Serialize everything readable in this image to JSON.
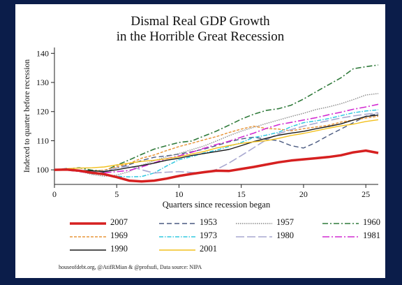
{
  "chart_data": {
    "type": "line",
    "title": "Dismal Real GDP Growth",
    "subtitle": "in the Horrible Great Recession",
    "xlabel": "Quarters since recession began",
    "ylabel": "Indexed to quarter before recession",
    "xlim": [
      0,
      26
    ],
    "ylim": [
      95,
      142
    ],
    "xticks": [
      0,
      5,
      10,
      15,
      20,
      25
    ],
    "yticks": [
      100,
      110,
      120,
      130,
      140
    ],
    "grid": false,
    "legend_position": "bottom",
    "x": [
      0,
      1,
      2,
      3,
      4,
      5,
      6,
      7,
      8,
      9,
      10,
      11,
      12,
      13,
      14,
      15,
      16,
      17,
      18,
      19,
      20,
      21,
      22,
      23,
      24,
      25,
      26
    ],
    "series": [
      {
        "name": "2007",
        "color": "#d62020",
        "dash": "solid",
        "width": 3.5,
        "values": [
          100,
          100.1,
          99.7,
          99.0,
          98.5,
          97.5,
          96.3,
          96.0,
          96.3,
          97.0,
          97.9,
          98.6,
          99.2,
          99.7,
          99.6,
          100.3,
          101.0,
          101.8,
          102.6,
          103.2,
          103.6,
          104.0,
          104.4,
          105.0,
          106.0,
          106.6,
          105.8
        ]
      },
      {
        "name": "1953",
        "color": "#4a5a80",
        "dash": "7,4",
        "width": 1.4,
        "values": [
          100,
          100.5,
          99.8,
          98.6,
          99.2,
          100.6,
          101.8,
          103.2,
          104.3,
          104.8,
          105.4,
          106.2,
          107.1,
          108.3,
          109.6,
          110.6,
          111.2,
          110.5,
          110.0,
          108.3,
          107.5,
          109.4,
          111.8,
          114.0,
          116.2,
          118.4,
          119.3
        ]
      },
      {
        "name": "1957",
        "color": "#8a8a8a",
        "dash": "1.5,1.5",
        "width": 1.4,
        "values": [
          100,
          100.4,
          99.6,
          98.4,
          97.8,
          98.2,
          99.4,
          101.6,
          103.1,
          104.5,
          105.6,
          106.9,
          108.2,
          109.9,
          111.7,
          113.3,
          114.6,
          115.9,
          117.1,
          118.3,
          119.4,
          120.7,
          121.6,
          122.7,
          124.1,
          125.7,
          126.2
        ]
      },
      {
        "name": "1960",
        "color": "#2f7a3a",
        "dash": "8,3,2,3",
        "width": 1.6,
        "values": [
          100,
          100.3,
          100.7,
          99.9,
          99.6,
          101.6,
          103.4,
          105.3,
          107.1,
          108.3,
          109.4,
          109.9,
          111.6,
          113.3,
          115.3,
          117.4,
          119.1,
          120.4,
          121.0,
          122.2,
          124.3,
          126.8,
          129.2,
          131.6,
          134.7,
          135.4,
          136.0
        ]
      },
      {
        "name": "1969",
        "color": "#e8963a",
        "dash": "4,2",
        "width": 1.5,
        "values": [
          100,
          100.2,
          99.9,
          99.5,
          99.9,
          101.1,
          102.2,
          104.0,
          105.1,
          106.6,
          108.0,
          109.1,
          110.3,
          111.4,
          112.8,
          114.0,
          115.0,
          114.2,
          114.0,
          113.4,
          114.1,
          114.7,
          115.3,
          116.4,
          117.1,
          117.8,
          118.4
        ]
      },
      {
        "name": "1973",
        "color": "#31c8e0",
        "dash": "6,2,1.5,2",
        "width": 1.5,
        "values": [
          100,
          100.1,
          99.8,
          99.5,
          98.5,
          97.8,
          97.6,
          97.7,
          98.9,
          101.3,
          103.5,
          104.5,
          105.8,
          106.7,
          108.0,
          109.4,
          111.1,
          111.9,
          112.9,
          114.8,
          116.2,
          116.8,
          117.6,
          118.6,
          119.6,
          120.2,
          120.6
        ]
      },
      {
        "name": "1980",
        "color": "#a8a8d0",
        "dash": "12,4",
        "width": 1.6,
        "values": [
          100,
          100.2,
          99.8,
          99.4,
          99.6,
          100.6,
          101.3,
          100.0,
          98.9,
          99.2,
          99.4,
          99.1,
          99.0,
          100.1,
          102.3,
          104.9,
          107.6,
          110.3,
          112.4,
          113.8,
          115.0,
          116.0,
          116.9,
          117.8,
          118.5,
          119.1,
          119.6
        ]
      },
      {
        "name": "1981",
        "color": "#d22bd2",
        "dash": "10,3,2,3",
        "width": 1.6,
        "values": [
          100,
          99.9,
          99.4,
          98.8,
          99.0,
          99.4,
          99.8,
          101.0,
          102.4,
          103.8,
          104.8,
          106.0,
          107.4,
          108.7,
          109.8,
          111.2,
          112.6,
          114.2,
          115.5,
          116.3,
          117.1,
          117.9,
          118.9,
          119.8,
          120.8,
          121.6,
          122.5
        ]
      },
      {
        "name": "1990",
        "color": "#1a1a1a",
        "dash": "solid",
        "width": 1.4,
        "values": [
          100,
          100.3,
          99.8,
          99.7,
          99.4,
          100.0,
          100.8,
          101.5,
          102.3,
          103.3,
          104.0,
          104.9,
          105.6,
          106.3,
          107.0,
          108.3,
          109.7,
          110.8,
          111.9,
          112.6,
          113.2,
          114.1,
          114.9,
          115.8,
          117.1,
          118.3,
          118.8
        ]
      },
      {
        "name": "2001",
        "color": "#f2c01d",
        "dash": "solid",
        "width": 1.4,
        "values": [
          100,
          100.4,
          100.6,
          100.7,
          101.0,
          101.7,
          102.3,
          102.9,
          103.3,
          103.8,
          104.5,
          105.4,
          106.3,
          107.5,
          108.3,
          109.1,
          109.6,
          110.0,
          110.8,
          111.8,
          112.5,
          113.4,
          114.3,
          115.1,
          115.7,
          116.6,
          117.2
        ]
      }
    ]
  },
  "legend": {
    "items": [
      "2007",
      "1953",
      "1957",
      "1960",
      "1969",
      "1973",
      "1980",
      "1981",
      "1990",
      "2001"
    ]
  },
  "source": "houseofdebt.org, @AtifRMian & @profsufi, Data source: NIPA"
}
